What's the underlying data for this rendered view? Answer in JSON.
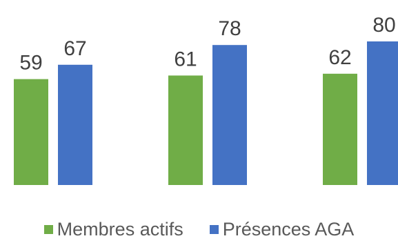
{
  "chart_data": {
    "type": "bar",
    "categories": [
      "",
      "",
      ""
    ],
    "series": [
      {
        "name": "Membres actifs",
        "color": "#70AD47",
        "values": [
          59,
          61,
          62
        ]
      },
      {
        "name": "Présences AGA",
        "color": "#4472C4",
        "values": [
          67,
          78,
          80
        ]
      }
    ],
    "title": "",
    "xlabel": "",
    "ylabel": "",
    "ylim": [
      0,
      100
    ],
    "grid": false,
    "legend_position": "bottom",
    "data_label_color": "#404040"
  },
  "legend": {
    "items": [
      {
        "label": "Membres actifs",
        "color": "#70AD47"
      },
      {
        "label": "Présences AGA",
        "color": "#4472C4"
      }
    ]
  }
}
